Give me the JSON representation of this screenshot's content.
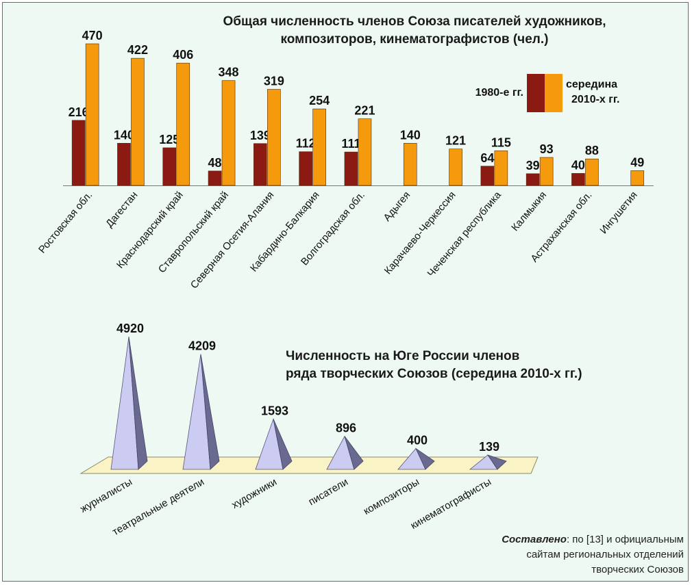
{
  "chart_data": [
    {
      "type": "bar",
      "title_lines": [
        "Общая численность членов Союза писателей художников,",
        "композиторов, кинематографистов (чел.)"
      ],
      "categories": [
        "Ростовская обл.",
        "Дагестан",
        "Краснодарский край",
        "Ставропольский край",
        "Северная Осетия-Алания",
        "Кабардино-Балкария",
        "Волгоградская обл.",
        "Адыгея",
        "Карачаево-Черкессия",
        "Чеченская республика",
        "Калмыкия",
        "Астраханская обл.",
        "Ингушетия"
      ],
      "series": [
        {
          "name": "1980-е гг.",
          "color": "#8b1a12",
          "values": [
            216,
            140,
            125,
            48,
            139,
            112,
            111,
            null,
            null,
            64,
            39,
            40,
            null
          ]
        },
        {
          "name": "середина 2010-х гг.",
          "color": "#f59a0c",
          "values": [
            470,
            422,
            406,
            348,
            319,
            254,
            221,
            140,
            121,
            115,
            93,
            88,
            49
          ]
        }
      ],
      "legend": {
        "label_1980": "1980-е гг.",
        "label_2010_line1": "середина",
        "label_2010_line2": "2010-х гг."
      },
      "ylim": [
        0,
        470
      ]
    },
    {
      "type": "pyramid",
      "title_lines": [
        "Численность на Юге России членов",
        "ряда творческих Союзов (середина 2010-х гг.)"
      ],
      "categories": [
        "журналисты",
        "театральные деятели",
        "художники",
        "писатели",
        "композиторы",
        "кинематографисты"
      ],
      "values": [
        4920,
        4209,
        1593,
        896,
        400,
        139
      ],
      "color": "#ccccf2",
      "ylim": [
        0,
        4920
      ]
    }
  ],
  "source": {
    "bold": "Составлено",
    "line1_rest": ": по [13] и официальным",
    "line2": "сайтам региональных отделений",
    "line3": "творческих Союзов"
  }
}
